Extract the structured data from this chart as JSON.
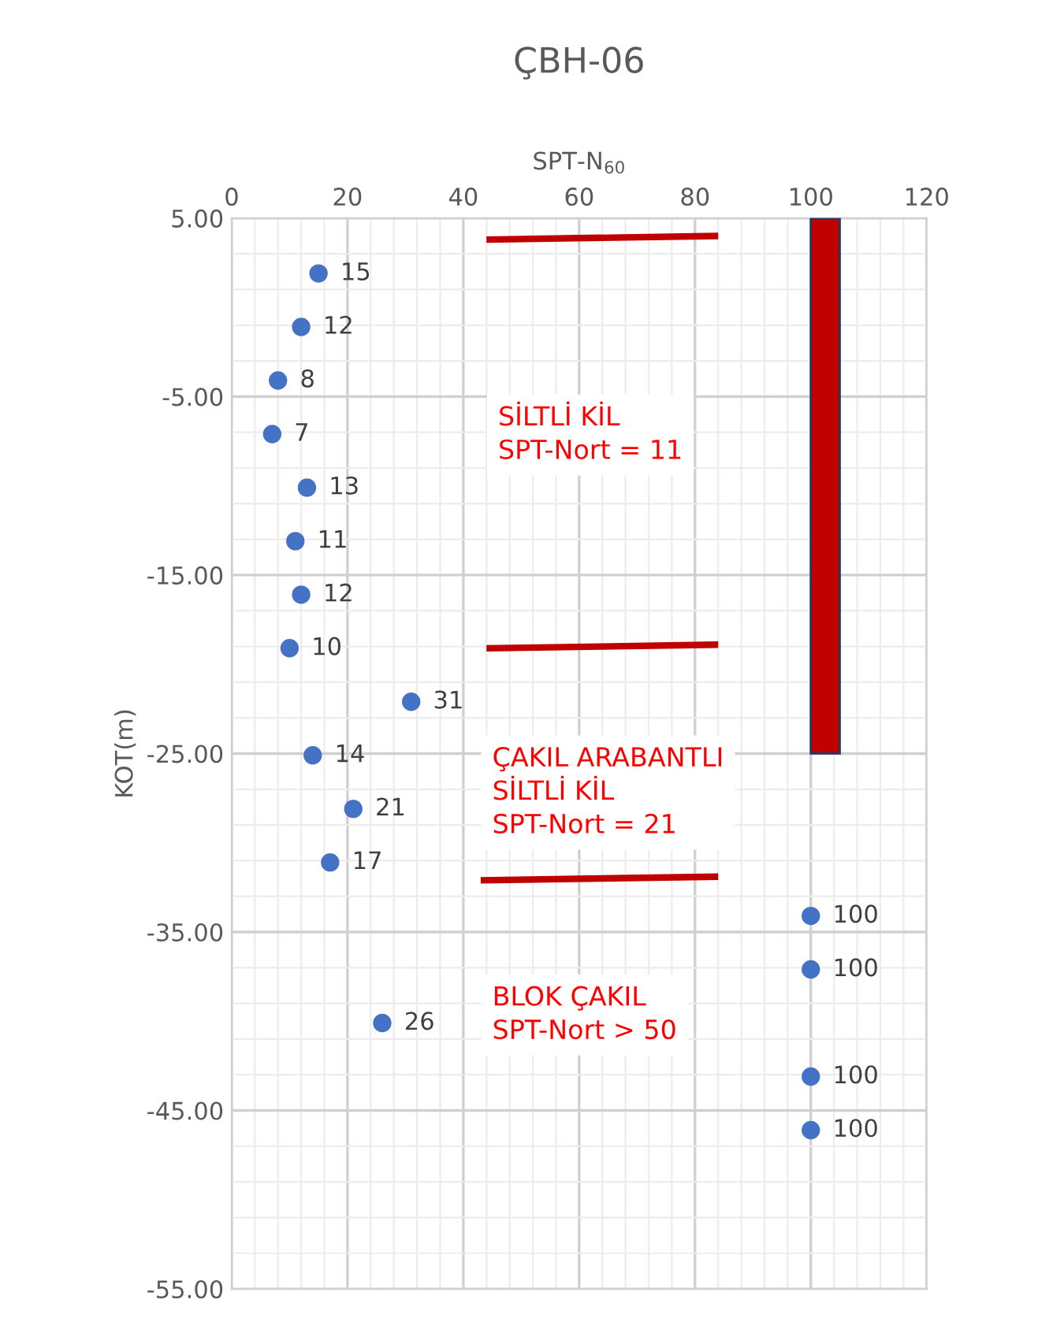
{
  "chart_data": {
    "type": "scatter",
    "title": "ÇBH-06",
    "xlabel": "SPT-N$_{60}$",
    "ylabel": "KOT(m)",
    "xlim": [
      0,
      120
    ],
    "xticks": [
      0,
      20,
      40,
      60,
      80,
      100,
      120
    ],
    "ylim": [
      -55,
      5
    ],
    "yticks": [
      {
        "value": 5,
        "label": "5.00"
      },
      {
        "value": -5,
        "label": "-5.00"
      },
      {
        "value": -15,
        "label": "-15.00"
      },
      {
        "value": -25,
        "label": "-25.00"
      },
      {
        "value": -35,
        "label": "-35.00"
      },
      {
        "value": -45,
        "label": "-45.00"
      },
      {
        "value": -55,
        "label": "-55.00"
      }
    ],
    "grid": true,
    "series": [
      {
        "type": "area",
        "color": "#c00000",
        "x": [
          100,
          100,
          105,
          105
        ],
        "values": [
          5,
          -25,
          -25,
          5
        ]
      },
      {
        "type": "line",
        "color": "#c00000",
        "x": [
          44,
          84
        ],
        "values": [
          3.8,
          4.0
        ]
      },
      {
        "type": "line",
        "color": "#c00000",
        "x": [
          44,
          84
        ],
        "values": [
          -19.1,
          -18.9
        ]
      },
      {
        "type": "line",
        "color": "#c00000",
        "x": [
          43,
          84
        ],
        "values": [
          -32.1,
          -31.9
        ]
      },
      {
        "marker": "circle",
        "color": "#4472c4",
        "x": [
          15,
          12,
          8,
          7,
          13,
          11,
          12,
          10,
          31,
          14,
          21,
          17,
          100,
          100,
          26,
          100,
          100
        ],
        "values": [
          1.9,
          -1.1,
          -4.1,
          -7.1,
          -10.1,
          -13.1,
          -16.1,
          -19.1,
          -22.1,
          -25.1,
          -28.1,
          -31.1,
          -34.1,
          -37.1,
          -40.1,
          -43.1,
          -46.1
        ]
      }
    ],
    "annotations": [
      "SİLTLİ KİL\nSPT-Nort = 11",
      "ÇAKIL ARABANTLI\nSİLTLİ KİL\nSPT-Nort = 21",
      "BLOK ÇAKIL\nSPT-Nort > 50",
      {
        "text": "15",
        "x": 15,
        "y": 1.9
      },
      {
        "text": "12",
        "x": 12,
        "y": -1.1
      },
      {
        "text": "8",
        "x": 8,
        "y": -4.1
      },
      {
        "text": "7",
        "x": 7,
        "y": -7.1
      },
      {
        "text": "13",
        "x": 13,
        "y": -10.1
      },
      {
        "text": "11",
        "x": 11,
        "y": -13.1
      },
      {
        "text": "12",
        "x": 12,
        "y": -16.1
      },
      {
        "text": "10",
        "x": 10,
        "y": -19.1
      },
      {
        "text": "31",
        "x": 31,
        "y": -22.1
      },
      {
        "text": "14",
        "x": 14,
        "y": -25.1
      },
      {
        "text": "21",
        "x": 21,
        "y": -28.1
      },
      {
        "text": "17",
        "x": 17,
        "y": -31.1
      },
      {
        "text": "100",
        "x": 100,
        "y": -34.1
      },
      {
        "text": "100",
        "x": 100,
        "y": -37.1
      },
      {
        "text": "26",
        "x": 26,
        "y": -40.1
      },
      {
        "text": "100",
        "x": 100,
        "y": -43.1
      },
      {
        "text": "100",
        "x": 100,
        "y": -46.1
      }
    ]
  }
}
